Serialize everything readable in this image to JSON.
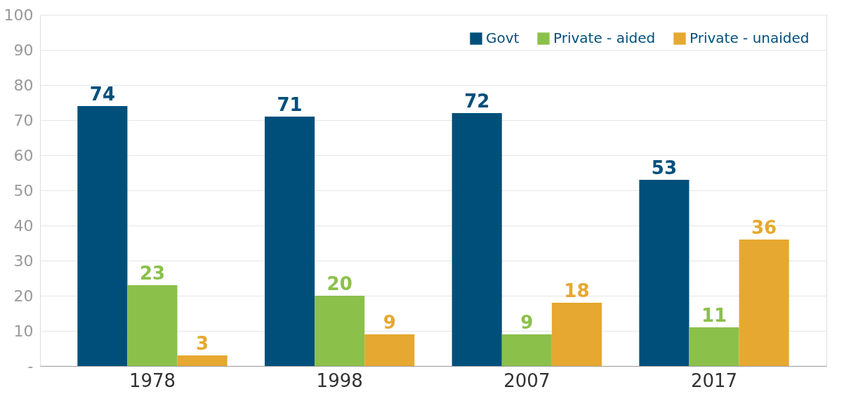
{
  "chart_data": {
    "type": "bar",
    "categories": [
      "1978",
      "1998",
      "2007",
      "2017"
    ],
    "series": [
      {
        "name": "Govt",
        "color": "#004f7b",
        "values": [
          74,
          71,
          72,
          53
        ]
      },
      {
        "name": "Private - aided",
        "color": "#8bc04b",
        "values": [
          23,
          20,
          9,
          11
        ]
      },
      {
        "name": "Private - unaided",
        "color": "#e6a830",
        "values": [
          3,
          9,
          18,
          36
        ]
      }
    ],
    "ylim": [
      0,
      100
    ],
    "yticks": [
      {
        "value": 0,
        "label": "-"
      },
      10,
      20,
      30,
      40,
      50,
      60,
      70,
      80,
      90,
      100
    ],
    "grid": "y",
    "legend": "top right",
    "data_labels": true
  }
}
